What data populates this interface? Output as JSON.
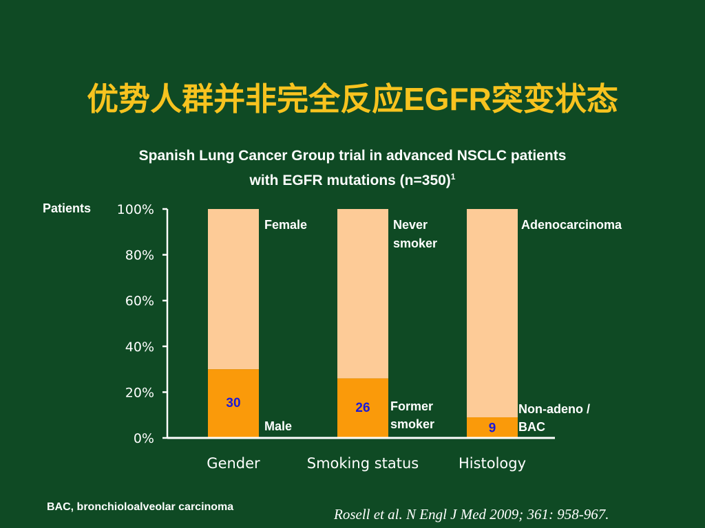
{
  "slide": {
    "title_cn_1": "优势人群并非完全反应",
    "title_latin": "EGFR",
    "title_cn_2": "突变状态",
    "subtitle_line1": "Spanish Lung Cancer Group trial in advanced NSCLC patients",
    "subtitle_line2": "with EGFR mutations (n=350)",
    "subtitle_sup": "1",
    "footnote": "BAC, bronchioloalveolar carcinoma",
    "citation": "Rosell et al. N Engl J Med 2009; 361: 958-967."
  },
  "colors": {
    "background": "#0f4a24",
    "title": "#f7c31f",
    "bar_top": "#fdcb97",
    "bar_bottom": "#fa9a0a",
    "value_label": "#1a1ad8",
    "axis": "#ffffff"
  },
  "chart_data": {
    "type": "bar",
    "stacked": true,
    "ylabel": "Patients",
    "ylim": [
      0,
      100
    ],
    "yticks": [
      "0%",
      "20%",
      "40%",
      "60%",
      "80%",
      "100%"
    ],
    "categories": [
      "Gender",
      "Smoking status",
      "Histology"
    ],
    "series": [
      {
        "name": "bottom",
        "values": [
          30,
          26,
          9
        ],
        "data_labels": [
          "30",
          "26",
          "9"
        ]
      },
      {
        "name": "top",
        "values": [
          70,
          74,
          91
        ]
      }
    ],
    "segment_labels": {
      "top": [
        "Female",
        "Never smoker",
        "Adenocarcinoma"
      ],
      "bottom": [
        "Male",
        "Former smoker",
        "Non-adeno / BAC"
      ]
    }
  }
}
